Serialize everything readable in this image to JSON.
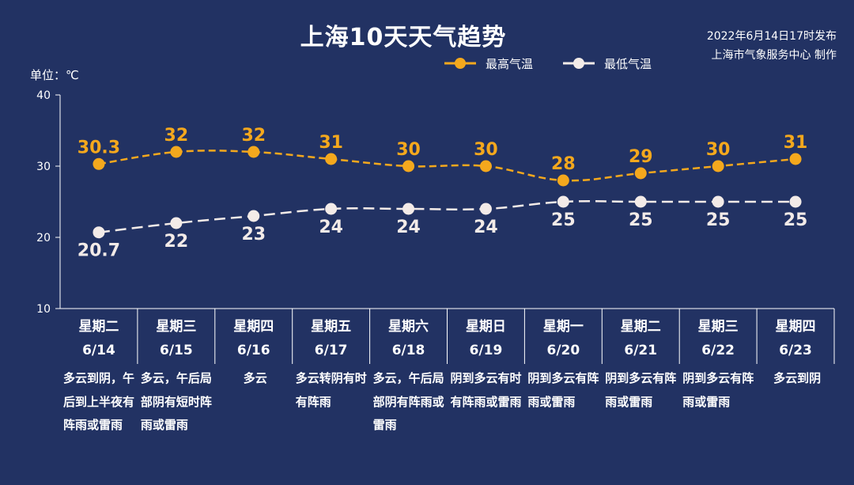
{
  "title": "上海10天天气趋势",
  "issue_time": "2022年6月14日17时发布",
  "issuer": "上海市气象服务中心 制作",
  "colors": {
    "background": "#223263",
    "high": "#f4a81d",
    "low": "#f3ebe8",
    "axis": "#ffffff"
  },
  "chart_data": {
    "type": "line",
    "ylabel": "单位：℃",
    "ylim": [
      10,
      40
    ],
    "yticks": [
      "40",
      "30",
      "20",
      "10"
    ],
    "legend_position": "top",
    "categories": [
      "6/14",
      "6/15",
      "6/16",
      "6/17",
      "6/18",
      "6/19",
      "6/20",
      "6/21",
      "6/22",
      "6/23"
    ],
    "weekdays": [
      "星期二",
      "星期三",
      "星期四",
      "星期五",
      "星期六",
      "星期日",
      "星期一",
      "星期二",
      "星期三",
      "星期四"
    ],
    "series": [
      {
        "name": "最高气温",
        "values": [
          30.3,
          32,
          32,
          31,
          30,
          30,
          28,
          29,
          30,
          31
        ],
        "labels": [
          "30.3",
          "32",
          "32",
          "31",
          "30",
          "30",
          "28",
          "29",
          "30",
          "31"
        ],
        "color": "#f4a81d"
      },
      {
        "name": "最低气温",
        "values": [
          20.7,
          22,
          23,
          24,
          24,
          24,
          25,
          25,
          25,
          25
        ],
        "labels": [
          "20.7",
          "22",
          "23",
          "24",
          "24",
          "24",
          "25",
          "25",
          "25",
          "25"
        ],
        "color": "#f3ebe8"
      }
    ],
    "descriptions": [
      "多云到阴，午后到上半夜有阵雨或雷雨",
      "多云，午后局部阴有短时阵雨或雷雨",
      "多云",
      "多云转阴有时有阵雨",
      "多云，午后局部阴有阵雨或雷雨",
      "阴到多云有时有阵雨或雷雨",
      "阴到多云有阵雨或雷雨",
      "阴到多云有阵雨或雷雨",
      "阴到多云有阵雨或雷雨",
      "多云到阴"
    ]
  }
}
